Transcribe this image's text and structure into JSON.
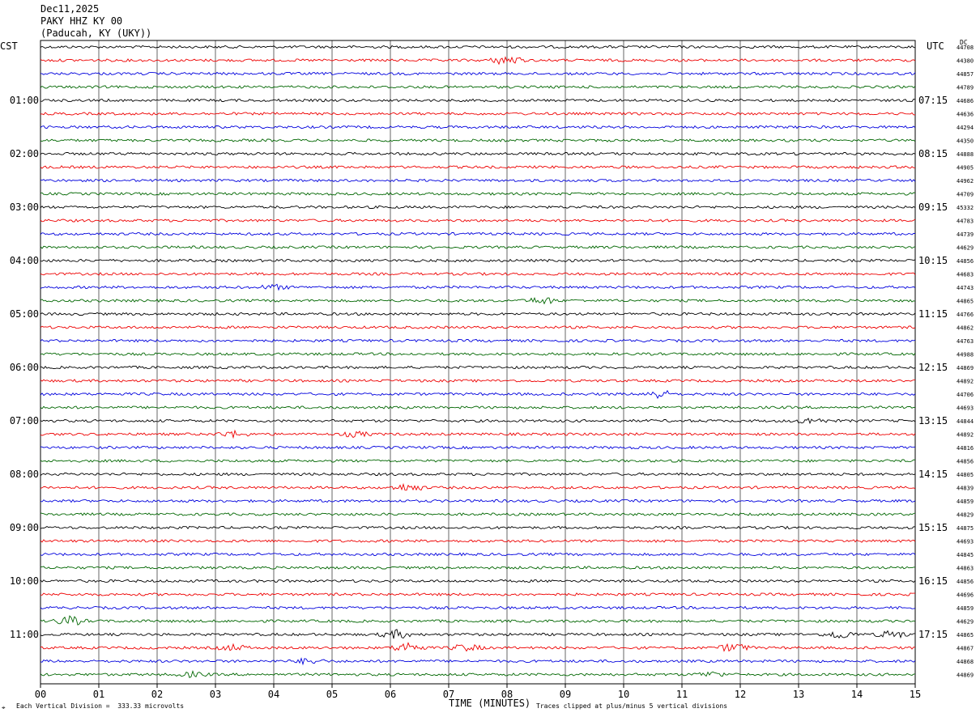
{
  "header": {
    "date": "Dec11,2025",
    "station": "PAKY HHZ KY 00",
    "location": "(Paducah, KY (UKY))"
  },
  "left_timezone": "CST",
  "right_timezone": "UTC",
  "dc_label": "DC",
  "footer": {
    "scale_note": "Each Vertical Division =  333.33 microvolts",
    "clip_note": "Traces clipped at plus/minus 5 vertical divisions"
  },
  "colors": {
    "trace_cycle": [
      "#000000",
      "#ee0000",
      "#0000dd",
      "#006600"
    ],
    "grid": "#000000"
  },
  "chart_data": {
    "type": "line",
    "title": "",
    "xlabel": "TIME (MINUTES)",
    "ylabel": "",
    "xlim": [
      0,
      15
    ],
    "x_ticks": [
      "00",
      "01",
      "02",
      "03",
      "04",
      "05",
      "06",
      "07",
      "08",
      "09",
      "10",
      "11",
      "12",
      "13",
      "14",
      "15"
    ],
    "rows_per_hour": 4,
    "row_count": 48,
    "left_hour_labels": [
      "01:00",
      "02:00",
      "03:00",
      "04:00",
      "05:00",
      "06:00",
      "07:00",
      "08:00",
      "09:00",
      "10:00",
      "11:00"
    ],
    "right_hour_labels": [
      "07:15",
      "08:15",
      "09:15",
      "10:15",
      "11:15",
      "12:15",
      "13:15",
      "14:15",
      "15:15",
      "16:15",
      "17:15"
    ],
    "dc_offsets": [
      "44708",
      "44380",
      "44857",
      "44789",
      "44686",
      "44636",
      "44294",
      "44350",
      "44888",
      "44905",
      "44962",
      "44709",
      "45332",
      "44783",
      "44739",
      "44629",
      "44856",
      "44683",
      "44743",
      "44865",
      "44766",
      "44862",
      "44763",
      "44988",
      "44869",
      "44892",
      "44706",
      "44693",
      "44844",
      "44892",
      "44816",
      "44856",
      "44805",
      "44839",
      "44859",
      "44829",
      "44875",
      "44693",
      "44845",
      "44863",
      "44856",
      "44696",
      "44859",
      "44629",
      "44865",
      "44867",
      "44868",
      "44869"
    ],
    "events": [
      {
        "row": 1,
        "minute": 8.0,
        "amplitude": 2.5
      },
      {
        "row": 18,
        "minute": 4.0,
        "amplitude": 1.2
      },
      {
        "row": 19,
        "minute": 8.6,
        "amplitude": 1.8
      },
      {
        "row": 26,
        "minute": 10.6,
        "amplitude": 2.2
      },
      {
        "row": 28,
        "minute": 13.2,
        "amplitude": 1.5
      },
      {
        "row": 29,
        "minute": 3.3,
        "amplitude": 1.6
      },
      {
        "row": 29,
        "minute": 5.4,
        "amplitude": 1.3
      },
      {
        "row": 33,
        "minute": 6.3,
        "amplitude": 2.0
      },
      {
        "row": 43,
        "minute": 0.5,
        "amplitude": 2.4
      },
      {
        "row": 44,
        "minute": 6.1,
        "amplitude": 2.2
      },
      {
        "row": 44,
        "minute": 13.7,
        "amplitude": 2.2
      },
      {
        "row": 44,
        "minute": 14.6,
        "amplitude": 2.0
      },
      {
        "row": 45,
        "minute": 3.3,
        "amplitude": 1.5
      },
      {
        "row": 45,
        "minute": 6.3,
        "amplitude": 2.8
      },
      {
        "row": 45,
        "minute": 7.3,
        "amplitude": 1.8
      },
      {
        "row": 45,
        "minute": 11.9,
        "amplitude": 2.4
      },
      {
        "row": 46,
        "minute": 4.6,
        "amplitude": 1.5
      },
      {
        "row": 47,
        "minute": 2.6,
        "amplitude": 1.2
      },
      {
        "row": 47,
        "minute": 11.5,
        "amplitude": 1.3
      }
    ]
  }
}
